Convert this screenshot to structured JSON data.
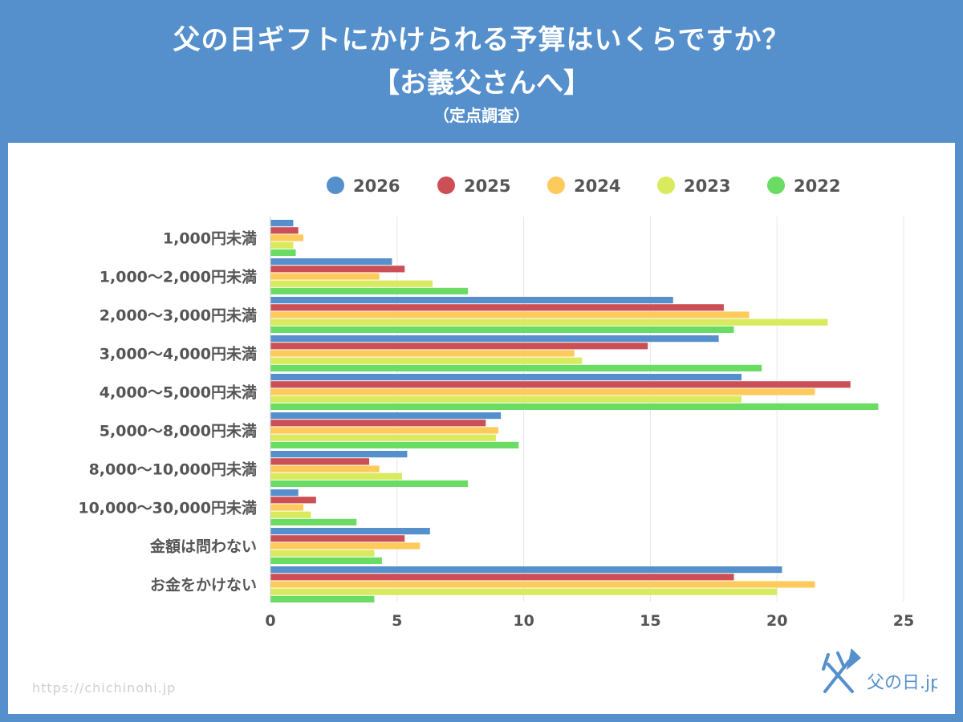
{
  "header": {
    "title_line1": "父の日ギフトにかけられる予算はいくらですか？",
    "title_line2": "【お義父さんへ】",
    "subtitle": "（定点調査）"
  },
  "footer": {
    "url": "https://chichinohi.jp",
    "logo_text": "父の日.jp"
  },
  "chart_data": {
    "type": "bar",
    "orientation": "horizontal",
    "categories": [
      "1,000円未満",
      "1,000〜2,000円未満",
      "2,000〜3,000円未満",
      "3,000〜4,000円未満",
      "4,000〜5,000円未満",
      "5,000〜8,000円未満",
      "8,000〜10,000円未満",
      "10,000〜30,000円未満",
      "金額は問わない",
      "お金をかけない"
    ],
    "series": [
      {
        "name": "2026",
        "color": "#5590cc",
        "values": [
          0.9,
          4.8,
          15.9,
          17.7,
          18.6,
          9.1,
          5.4,
          1.1,
          6.3,
          20.2
        ]
      },
      {
        "name": "2025",
        "color": "#cc4f55",
        "values": [
          1.1,
          5.3,
          17.9,
          14.9,
          22.9,
          8.5,
          3.9,
          1.8,
          5.3,
          18.3
        ]
      },
      {
        "name": "2024",
        "color": "#ffca5c",
        "values": [
          1.3,
          4.3,
          18.9,
          12.0,
          21.5,
          9.0,
          4.3,
          1.3,
          5.9,
          21.5
        ]
      },
      {
        "name": "2023",
        "color": "#d9ea5e",
        "values": [
          0.9,
          6.4,
          22.0,
          12.3,
          18.6,
          8.9,
          5.2,
          1.6,
          4.1,
          20.0
        ]
      },
      {
        "name": "2022",
        "color": "#6bdc63",
        "values": [
          1.0,
          7.8,
          18.3,
          19.4,
          24.0,
          9.8,
          7.8,
          3.4,
          4.4,
          4.1
        ]
      }
    ],
    "xlim": [
      0,
      25
    ],
    "xticks": [
      0,
      5,
      10,
      15,
      20,
      25
    ],
    "legend_position": "top",
    "grid": true
  }
}
